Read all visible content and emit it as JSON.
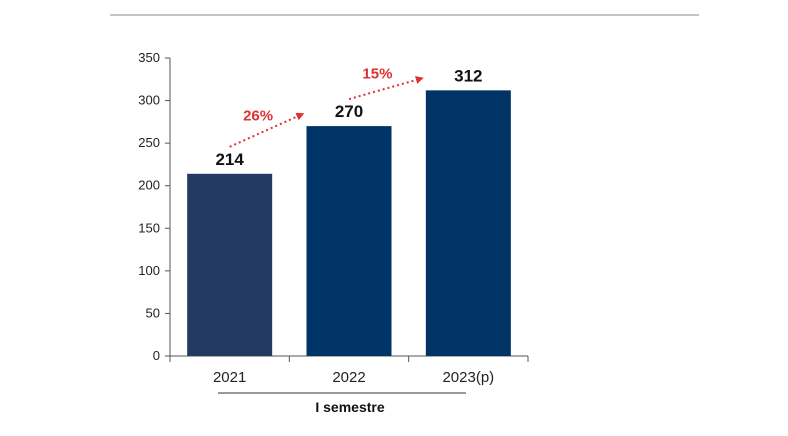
{
  "chart_data": {
    "type": "bar",
    "categories": [
      "2021",
      "2022",
      "2023(p)"
    ],
    "values": [
      214,
      270,
      312
    ],
    "data_labels": [
      "214",
      "270",
      "312"
    ],
    "ylim": [
      0,
      350
    ],
    "yticks": [
      "0",
      "50",
      "100",
      "150",
      "200",
      "250",
      "300",
      "350"
    ],
    "ytick_values": [
      0,
      50,
      100,
      150,
      200,
      250,
      300,
      350
    ],
    "bar_colors": [
      "#233a62",
      "#003366",
      "#003366"
    ],
    "growth_annotations": [
      {
        "from": 0,
        "to": 1,
        "label": "26%"
      },
      {
        "from": 1,
        "to": 2,
        "label": "15%"
      }
    ],
    "growth_color": "#e03030",
    "group_label": "I semestre",
    "grid": false,
    "legend": "none"
  }
}
